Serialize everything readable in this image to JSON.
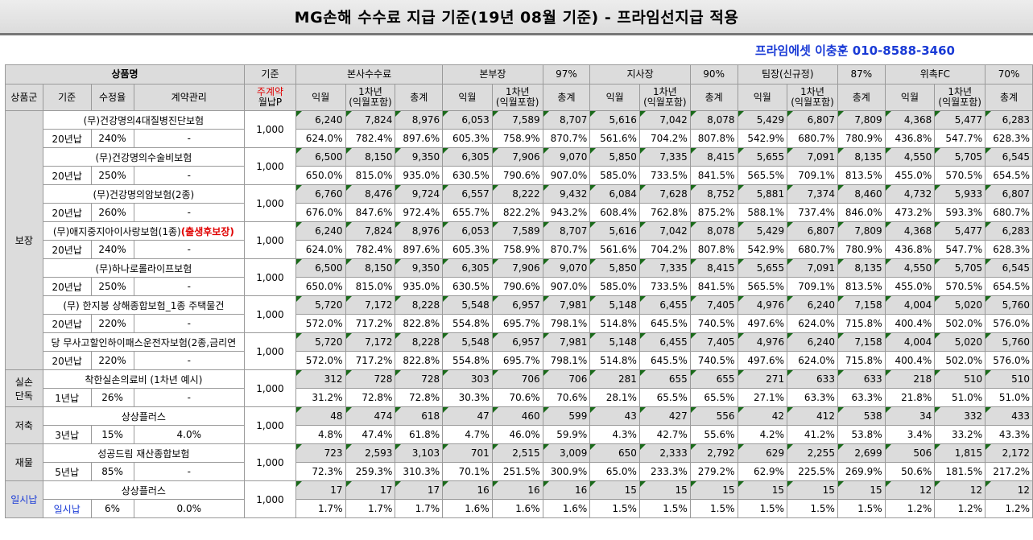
{
  "title": "MG손해 수수료 지급 기준(19년 08월 기준) - 프라임선지급 적용",
  "contact": "프라임에셋 이충훈 010-8588-3460",
  "header1": {
    "product": "상품명",
    "basis": "기준",
    "groups": [
      {
        "label": "본사수수료",
        "rate": ""
      },
      {
        "label": "본부장",
        "rate": "97%"
      },
      {
        "label": "지사장",
        "rate": "90%"
      },
      {
        "label": "팀장(신규정)",
        "rate": "87%"
      },
      {
        "label": "위촉FC",
        "rate": "70%"
      }
    ]
  },
  "header2": {
    "group": "상품군",
    "standard": "기준",
    "rate": "수정율",
    "contract": "계약관리",
    "premium_line1": "주계약",
    "premium_line2": "월납P",
    "sub": [
      "익월",
      "1차년",
      "(익월포함)",
      "총계"
    ]
  },
  "categories": [
    {
      "label": "보장",
      "label2": ""
    },
    {
      "label": "실손",
      "label2": "단독"
    },
    {
      "label": "저축",
      "label2": ""
    },
    {
      "label": "재물",
      "label2": ""
    },
    {
      "label": "일시납",
      "label2": ""
    }
  ],
  "products": [
    {
      "name": "(무)건강명의4대질병진단보험",
      "name_extra": "",
      "standard": "20년납",
      "rate": "240%",
      "contract": "-",
      "premium": "1,000",
      "amounts": [
        "6,240",
        "7,824",
        "8,976",
        "6,053",
        "7,589",
        "8,707",
        "5,616",
        "7,042",
        "8,078",
        "5,429",
        "6,807",
        "7,809",
        "4,368",
        "5,477",
        "6,283"
      ],
      "percents": [
        "624.0%",
        "782.4%",
        "897.6%",
        "605.3%",
        "758.9%",
        "870.7%",
        "561.6%",
        "704.2%",
        "807.8%",
        "542.9%",
        "680.7%",
        "780.9%",
        "436.8%",
        "547.7%",
        "628.3%"
      ]
    },
    {
      "name": "(무)건강명의수술비보험",
      "name_extra": "",
      "standard": "20년납",
      "rate": "250%",
      "contract": "-",
      "premium": "1,000",
      "amounts": [
        "6,500",
        "8,150",
        "9,350",
        "6,305",
        "7,906",
        "9,070",
        "5,850",
        "7,335",
        "8,415",
        "5,655",
        "7,091",
        "8,135",
        "4,550",
        "5,705",
        "6,545"
      ],
      "percents": [
        "650.0%",
        "815.0%",
        "935.0%",
        "630.5%",
        "790.6%",
        "907.0%",
        "585.0%",
        "733.5%",
        "841.5%",
        "565.5%",
        "709.1%",
        "813.5%",
        "455.0%",
        "570.5%",
        "654.5%"
      ]
    },
    {
      "name": "(무)건강명의암보험(2종)",
      "name_extra": "",
      "standard": "20년납",
      "rate": "260%",
      "contract": "-",
      "premium": "1,000",
      "amounts": [
        "6,760",
        "8,476",
        "9,724",
        "6,557",
        "8,222",
        "9,432",
        "6,084",
        "7,628",
        "8,752",
        "5,881",
        "7,374",
        "8,460",
        "4,732",
        "5,933",
        "6,807"
      ],
      "percents": [
        "676.0%",
        "847.6%",
        "972.4%",
        "655.7%",
        "822.2%",
        "943.2%",
        "608.4%",
        "762.8%",
        "875.2%",
        "588.1%",
        "737.4%",
        "846.0%",
        "473.2%",
        "593.3%",
        "680.7%"
      ]
    },
    {
      "name": "(무)애지중지아이사랑보험(1종)",
      "name_extra": "(출생후보장)",
      "standard": "20년납",
      "rate": "240%",
      "contract": "-",
      "premium": "1,000",
      "amounts": [
        "6,240",
        "7,824",
        "8,976",
        "6,053",
        "7,589",
        "8,707",
        "5,616",
        "7,042",
        "8,078",
        "5,429",
        "6,807",
        "7,809",
        "4,368",
        "5,477",
        "6,283"
      ],
      "percents": [
        "624.0%",
        "782.4%",
        "897.6%",
        "605.3%",
        "758.9%",
        "870.7%",
        "561.6%",
        "704.2%",
        "807.8%",
        "542.9%",
        "680.7%",
        "780.9%",
        "436.8%",
        "547.7%",
        "628.3%"
      ]
    },
    {
      "name": "(무)하나로롤라이프보험",
      "name_extra": "",
      "standard": "20년납",
      "rate": "250%",
      "contract": "-",
      "premium": "1,000",
      "amounts": [
        "6,500",
        "8,150",
        "9,350",
        "6,305",
        "7,906",
        "9,070",
        "5,850",
        "7,335",
        "8,415",
        "5,655",
        "7,091",
        "8,135",
        "4,550",
        "5,705",
        "6,545"
      ],
      "percents": [
        "650.0%",
        "815.0%",
        "935.0%",
        "630.5%",
        "790.6%",
        "907.0%",
        "585.0%",
        "733.5%",
        "841.5%",
        "565.5%",
        "709.1%",
        "813.5%",
        "455.0%",
        "570.5%",
        "654.5%"
      ]
    },
    {
      "name": "(무) 한지붕 상해종합보험_1종 주택물건",
      "name_extra": "",
      "standard": "20년납",
      "rate": "220%",
      "contract": "-",
      "premium": "1,000",
      "amounts": [
        "5,720",
        "7,172",
        "8,228",
        "5,548",
        "6,957",
        "7,981",
        "5,148",
        "6,455",
        "7,405",
        "4,976",
        "6,240",
        "7,158",
        "4,004",
        "5,020",
        "5,760"
      ],
      "percents": [
        "572.0%",
        "717.2%",
        "822.8%",
        "554.8%",
        "695.7%",
        "798.1%",
        "514.8%",
        "645.5%",
        "740.5%",
        "497.6%",
        "624.0%",
        "715.8%",
        "400.4%",
        "502.0%",
        "576.0%"
      ]
    },
    {
      "name": "당 무사고할인하이패스운전자보험(2종,금리연",
      "name_extra": "",
      "standard": "20년납",
      "rate": "220%",
      "contract": "-",
      "premium": "1,000",
      "amounts": [
        "5,720",
        "7,172",
        "8,228",
        "5,548",
        "6,957",
        "7,981",
        "5,148",
        "6,455",
        "7,405",
        "4,976",
        "6,240",
        "7,158",
        "4,004",
        "5,020",
        "5,760"
      ],
      "percents": [
        "572.0%",
        "717.2%",
        "822.8%",
        "554.8%",
        "695.7%",
        "798.1%",
        "514.8%",
        "645.5%",
        "740.5%",
        "497.6%",
        "624.0%",
        "715.8%",
        "400.4%",
        "502.0%",
        "576.0%"
      ]
    },
    {
      "name": "착한실손의료비 (1차년 예시)",
      "name_extra": "",
      "standard": "1년납",
      "rate": "26%",
      "contract": "-",
      "premium": "1,000",
      "amounts": [
        "312",
        "728",
        "728",
        "303",
        "706",
        "706",
        "281",
        "655",
        "655",
        "271",
        "633",
        "633",
        "218",
        "510",
        "510"
      ],
      "percents": [
        "31.2%",
        "72.8%",
        "72.8%",
        "30.3%",
        "70.6%",
        "70.6%",
        "28.1%",
        "65.5%",
        "65.5%",
        "27.1%",
        "63.3%",
        "63.3%",
        "21.8%",
        "51.0%",
        "51.0%"
      ]
    },
    {
      "name": "상상플러스",
      "name_extra": "",
      "standard": "3년납",
      "rate": "15%",
      "contract": "4.0%",
      "premium": "1,000",
      "amounts": [
        "48",
        "474",
        "618",
        "47",
        "460",
        "599",
        "43",
        "427",
        "556",
        "42",
        "412",
        "538",
        "34",
        "332",
        "433"
      ],
      "percents": [
        "4.8%",
        "47.4%",
        "61.8%",
        "4.7%",
        "46.0%",
        "59.9%",
        "4.3%",
        "42.7%",
        "55.6%",
        "4.2%",
        "41.2%",
        "53.8%",
        "3.4%",
        "33.2%",
        "43.3%"
      ]
    },
    {
      "name": "성공드림 재산종합보험",
      "name_extra": "",
      "standard": "5년납",
      "rate": "85%",
      "contract": "-",
      "premium": "1,000",
      "amounts": [
        "723",
        "2,593",
        "3,103",
        "701",
        "2,515",
        "3,009",
        "650",
        "2,333",
        "2,792",
        "629",
        "2,255",
        "2,699",
        "506",
        "1,815",
        "2,172"
      ],
      "percents": [
        "72.3%",
        "259.3%",
        "310.3%",
        "70.1%",
        "251.5%",
        "300.9%",
        "65.0%",
        "233.3%",
        "279.2%",
        "62.9%",
        "225.5%",
        "269.9%",
        "50.6%",
        "181.5%",
        "217.2%"
      ]
    },
    {
      "name": "상상플러스",
      "name_extra": "",
      "standard": "일시납",
      "rate": "6%",
      "contract": "0.0%",
      "premium": "1,000",
      "amounts": [
        "17",
        "17",
        "17",
        "16",
        "16",
        "16",
        "15",
        "15",
        "15",
        "15",
        "15",
        "15",
        "12",
        "12",
        "12"
      ],
      "percents": [
        "1.7%",
        "1.7%",
        "1.7%",
        "1.6%",
        "1.6%",
        "1.6%",
        "1.5%",
        "1.5%",
        "1.5%",
        "1.5%",
        "1.5%",
        "1.5%",
        "1.2%",
        "1.2%",
        "1.2%"
      ]
    }
  ],
  "colors": {
    "header_bg": "#dcdcdc",
    "accent_red": "#e00000",
    "accent_blue": "#1a3bd6"
  }
}
